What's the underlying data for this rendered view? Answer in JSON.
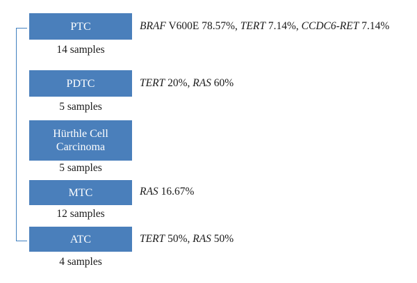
{
  "accent_color": "#4a7fbb",
  "bracket_color": "#3f7fbf",
  "groups": [
    {
      "label": "PTC",
      "samples": "14 samples",
      "mutations": [
        {
          "gene": "BRAF",
          "rest": " V600E 78.57%",
          "sep": ", "
        },
        {
          "gene": "TERT",
          "rest": " 7.14%",
          "sep": ", "
        },
        {
          "gene": "CCDC6-RET",
          "rest": " 7.14%",
          "sep": ""
        }
      ]
    },
    {
      "label": "PDTC",
      "samples": "5 samples",
      "mutations": [
        {
          "gene": "TERT",
          "rest": " 20%",
          "sep": ", "
        },
        {
          "gene": "RAS",
          "rest": " 60%",
          "sep": ""
        }
      ]
    },
    {
      "label": "Hürthle Cell\nCarcinoma",
      "samples": "5 samples",
      "mutations": []
    },
    {
      "label": "MTC",
      "samples": "12 samples",
      "mutations": [
        {
          "gene": "RAS",
          "rest": " 16.67%",
          "sep": ""
        }
      ]
    },
    {
      "label": "ATC",
      "samples": "4 samples",
      "mutations": [
        {
          "gene": "TERT",
          "rest": " 50%",
          "sep": ", "
        },
        {
          "gene": "RAS",
          "rest": " 50%",
          "sep": ""
        }
      ]
    }
  ]
}
